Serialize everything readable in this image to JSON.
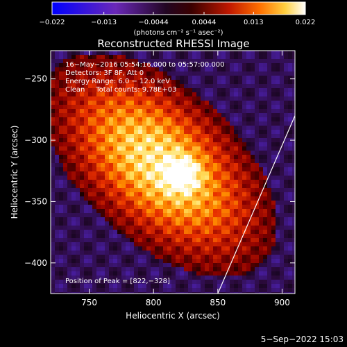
{
  "chart_data": {
    "type": "heatmap",
    "title": "Reconstructed RHESSI Image",
    "xlabel": "Heliocentric X (arcsec)",
    "ylabel": "Heliocentric Y (arcsec)",
    "xlim": [
      720,
      910
    ],
    "ylim": [
      -425,
      -227
    ],
    "x_ticks": [
      750,
      800,
      850,
      900
    ],
    "y_ticks": [
      -250,
      -300,
      -350,
      -400
    ],
    "x_tick_labels": [
      "750",
      "800",
      "850",
      "900"
    ],
    "y_tick_labels": [
      "−250",
      "−300",
      "−350",
      "−400"
    ],
    "colorbar": {
      "range": [
        -0.022,
        0.022
      ],
      "ticks": [
        -0.022,
        -0.013,
        -0.0044,
        0.0044,
        0.013,
        0.022
      ],
      "tick_labels": [
        "−0.022",
        "−0.013",
        "−0.0044",
        "0.0044",
        "0.013",
        "0.022"
      ],
      "units_label": "(photons cm⁻² s⁻¹ asec⁻²)"
    },
    "annotations": [
      "16−May−2016 05:54:16.000 to 05:57:00.000",
      "Detectors: 3F 8F, Att 0",
      "Energy Range: 6.0 − 12.0 keV",
      "Clean     Total counts: 9.78E+03"
    ],
    "peak_text": "Position of Peak = [822,−328]",
    "peak": [
      822,
      -328
    ],
    "limb_line": [
      [
        850,
        -425
      ],
      [
        910,
        -280
      ]
    ],
    "colormap": [
      "#0000ff",
      "#4a1fa8",
      "#2b0a3c",
      "#000000",
      "#8b0000",
      "#e83000",
      "#ff9000",
      "#ffe060",
      "#ffffff"
    ]
  },
  "timestamp": "5−Sep−2022 15:03"
}
